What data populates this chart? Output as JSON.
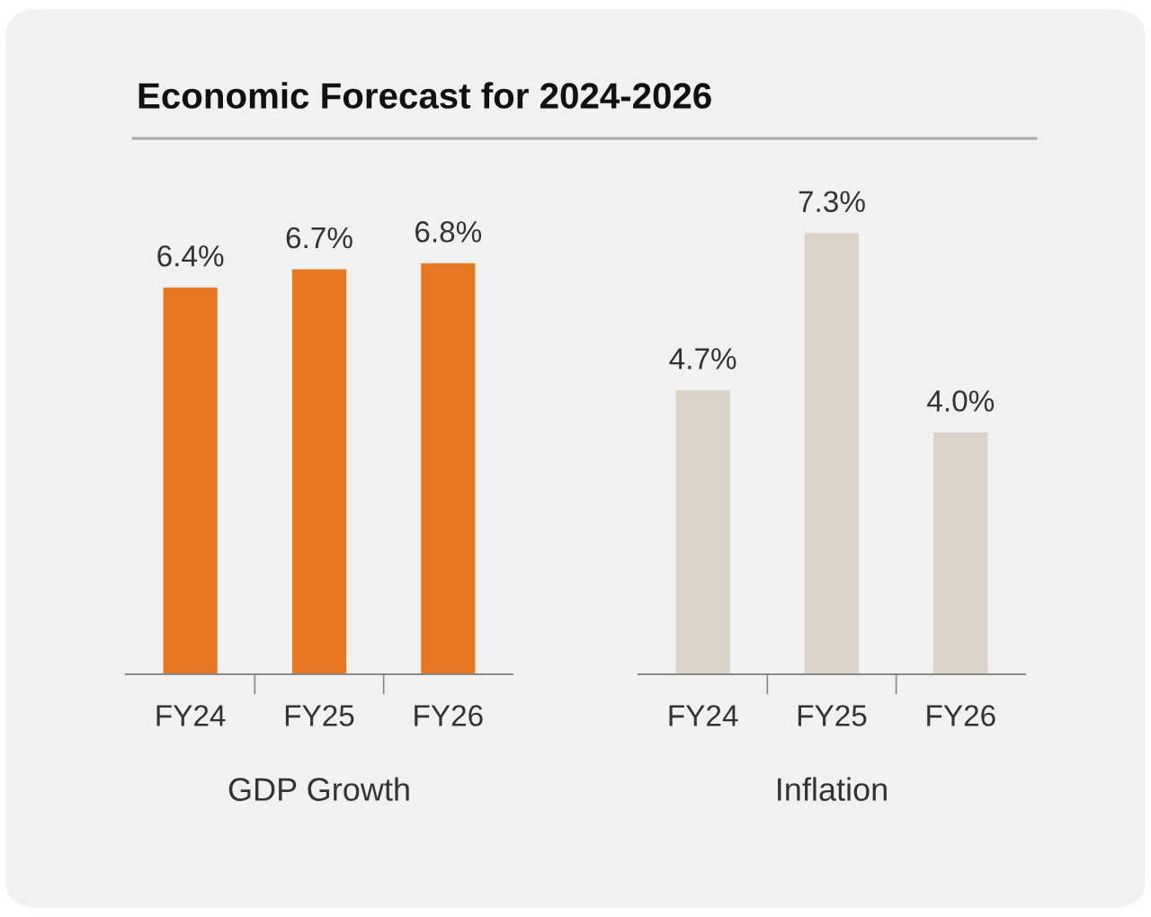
{
  "chart_data": [
    {
      "type": "bar",
      "title": "Economic Forecast for 2024-2026",
      "xlabel": "GDP Growth",
      "categories": [
        "FY24",
        "FY25",
        "FY26"
      ],
      "values": [
        6.4,
        6.7,
        6.8
      ],
      "color": "#e87722",
      "value_labels": [
        "6.4%",
        "6.7%",
        "6.8%"
      ]
    },
    {
      "type": "bar",
      "xlabel": "Inflation",
      "categories": [
        "FY24",
        "FY25",
        "FY26"
      ],
      "values": [
        4.7,
        7.3,
        4.0
      ],
      "color": "#dbd3c7",
      "value_labels": [
        "4.7%",
        "7.3%",
        "4.0%"
      ]
    }
  ]
}
